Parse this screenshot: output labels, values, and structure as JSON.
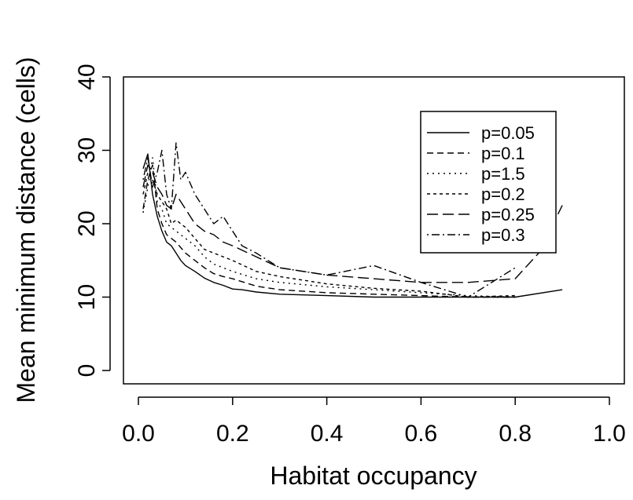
{
  "chart_data": {
    "type": "line",
    "xlabel": "Habitat occupancy",
    "ylabel": "Mean minimum distance (cells)",
    "xlim": [
      0.0,
      1.0
    ],
    "ylim": [
      0,
      40
    ],
    "x_ticks": [
      "0.0",
      "0.2",
      "0.4",
      "0.6",
      "0.8",
      "1.0"
    ],
    "y_ticks": [
      "0",
      "10",
      "20",
      "30",
      "40"
    ],
    "grid": false,
    "legend_position": "top-right",
    "series": [
      {
        "name": "p=0.05",
        "dash": "solid",
        "points": [
          [
            0.01,
            27.5
          ],
          [
            0.02,
            29.5
          ],
          [
            0.03,
            24
          ],
          [
            0.04,
            21
          ],
          [
            0.05,
            19
          ],
          [
            0.06,
            17.5
          ],
          [
            0.07,
            17
          ],
          [
            0.08,
            16
          ],
          [
            0.09,
            15
          ],
          [
            0.1,
            14.3
          ],
          [
            0.12,
            13.5
          ],
          [
            0.14,
            12.6
          ],
          [
            0.16,
            12
          ],
          [
            0.18,
            11.6
          ],
          [
            0.2,
            11.1
          ],
          [
            0.22,
            11
          ],
          [
            0.25,
            10.7
          ],
          [
            0.3,
            10.4
          ],
          [
            0.4,
            10.2
          ],
          [
            0.5,
            10
          ],
          [
            0.6,
            10
          ],
          [
            0.7,
            10
          ],
          [
            0.8,
            10
          ],
          [
            0.9,
            11
          ]
        ]
      },
      {
        "name": "p=0.1",
        "dash": "dashed",
        "points": [
          [
            0.01,
            22
          ],
          [
            0.02,
            26
          ],
          [
            0.03,
            28
          ],
          [
            0.04,
            22
          ],
          [
            0.05,
            20
          ],
          [
            0.06,
            18.5
          ],
          [
            0.07,
            18
          ],
          [
            0.08,
            17.5
          ],
          [
            0.1,
            16
          ],
          [
            0.12,
            15
          ],
          [
            0.14,
            14
          ],
          [
            0.16,
            13.2
          ],
          [
            0.18,
            12.8
          ],
          [
            0.2,
            12.5
          ],
          [
            0.25,
            11.5
          ],
          [
            0.3,
            11
          ],
          [
            0.4,
            10.6
          ],
          [
            0.5,
            10.4
          ],
          [
            0.6,
            10.2
          ],
          [
            0.7,
            10
          ],
          [
            0.8,
            10
          ]
        ]
      },
      {
        "name": "p=1.5",
        "dash": "dotted",
        "points": [
          [
            0.01,
            21.5
          ],
          [
            0.02,
            25
          ],
          [
            0.03,
            29
          ],
          [
            0.04,
            23
          ],
          [
            0.05,
            22
          ],
          [
            0.06,
            20
          ],
          [
            0.07,
            19.5
          ],
          [
            0.08,
            19
          ],
          [
            0.1,
            18
          ],
          [
            0.12,
            17
          ],
          [
            0.14,
            15.5
          ],
          [
            0.16,
            14.5
          ],
          [
            0.18,
            14
          ],
          [
            0.2,
            13.5
          ],
          [
            0.25,
            12.5
          ],
          [
            0.3,
            12
          ],
          [
            0.4,
            11.4
          ],
          [
            0.5,
            11
          ],
          [
            0.6,
            10.6
          ],
          [
            0.7,
            10.2
          ],
          [
            0.8,
            10
          ]
        ]
      },
      {
        "name": "p=0.2",
        "dash": "short-dash",
        "points": [
          [
            0.01,
            24
          ],
          [
            0.02,
            27
          ],
          [
            0.03,
            26
          ],
          [
            0.04,
            24
          ],
          [
            0.05,
            23
          ],
          [
            0.06,
            22
          ],
          [
            0.07,
            20
          ],
          [
            0.08,
            20.5
          ],
          [
            0.1,
            19.5
          ],
          [
            0.12,
            18
          ],
          [
            0.14,
            16.5
          ],
          [
            0.16,
            16
          ],
          [
            0.18,
            15.5
          ],
          [
            0.2,
            15
          ],
          [
            0.25,
            13.5
          ],
          [
            0.3,
            12.8
          ],
          [
            0.4,
            11.8
          ],
          [
            0.5,
            11.2
          ],
          [
            0.6,
            10.8
          ],
          [
            0.7,
            10
          ],
          [
            0.8,
            10.2
          ]
        ]
      },
      {
        "name": "p=0.25",
        "dash": "long-dash",
        "points": [
          [
            0.01,
            25
          ],
          [
            0.02,
            28
          ],
          [
            0.03,
            27
          ],
          [
            0.04,
            25
          ],
          [
            0.05,
            24
          ],
          [
            0.06,
            22.5
          ],
          [
            0.07,
            22
          ],
          [
            0.08,
            24
          ],
          [
            0.1,
            22
          ],
          [
            0.12,
            20
          ],
          [
            0.14,
            19
          ],
          [
            0.16,
            18.5
          ],
          [
            0.18,
            17.5
          ],
          [
            0.2,
            17
          ],
          [
            0.25,
            15.5
          ],
          [
            0.3,
            14
          ],
          [
            0.4,
            13
          ],
          [
            0.5,
            12.5
          ],
          [
            0.6,
            12
          ],
          [
            0.7,
            12
          ],
          [
            0.8,
            12.5
          ],
          [
            0.85,
            16
          ],
          [
            0.9,
            22.5
          ]
        ]
      },
      {
        "name": "p=0.3",
        "dash": "dot-dash",
        "points": [
          [
            0.01,
            26
          ],
          [
            0.02,
            29
          ],
          [
            0.03,
            25
          ],
          [
            0.04,
            27
          ],
          [
            0.05,
            30
          ],
          [
            0.06,
            24
          ],
          [
            0.07,
            22
          ],
          [
            0.08,
            31
          ],
          [
            0.09,
            26
          ],
          [
            0.1,
            27
          ],
          [
            0.12,
            24
          ],
          [
            0.14,
            22
          ],
          [
            0.16,
            20
          ],
          [
            0.18,
            21
          ],
          [
            0.2,
            19
          ],
          [
            0.22,
            17
          ],
          [
            0.25,
            16
          ],
          [
            0.3,
            14
          ],
          [
            0.4,
            13
          ],
          [
            0.5,
            14.3
          ],
          [
            0.6,
            12
          ],
          [
            0.7,
            10
          ],
          [
            0.8,
            14
          ]
        ]
      }
    ]
  }
}
